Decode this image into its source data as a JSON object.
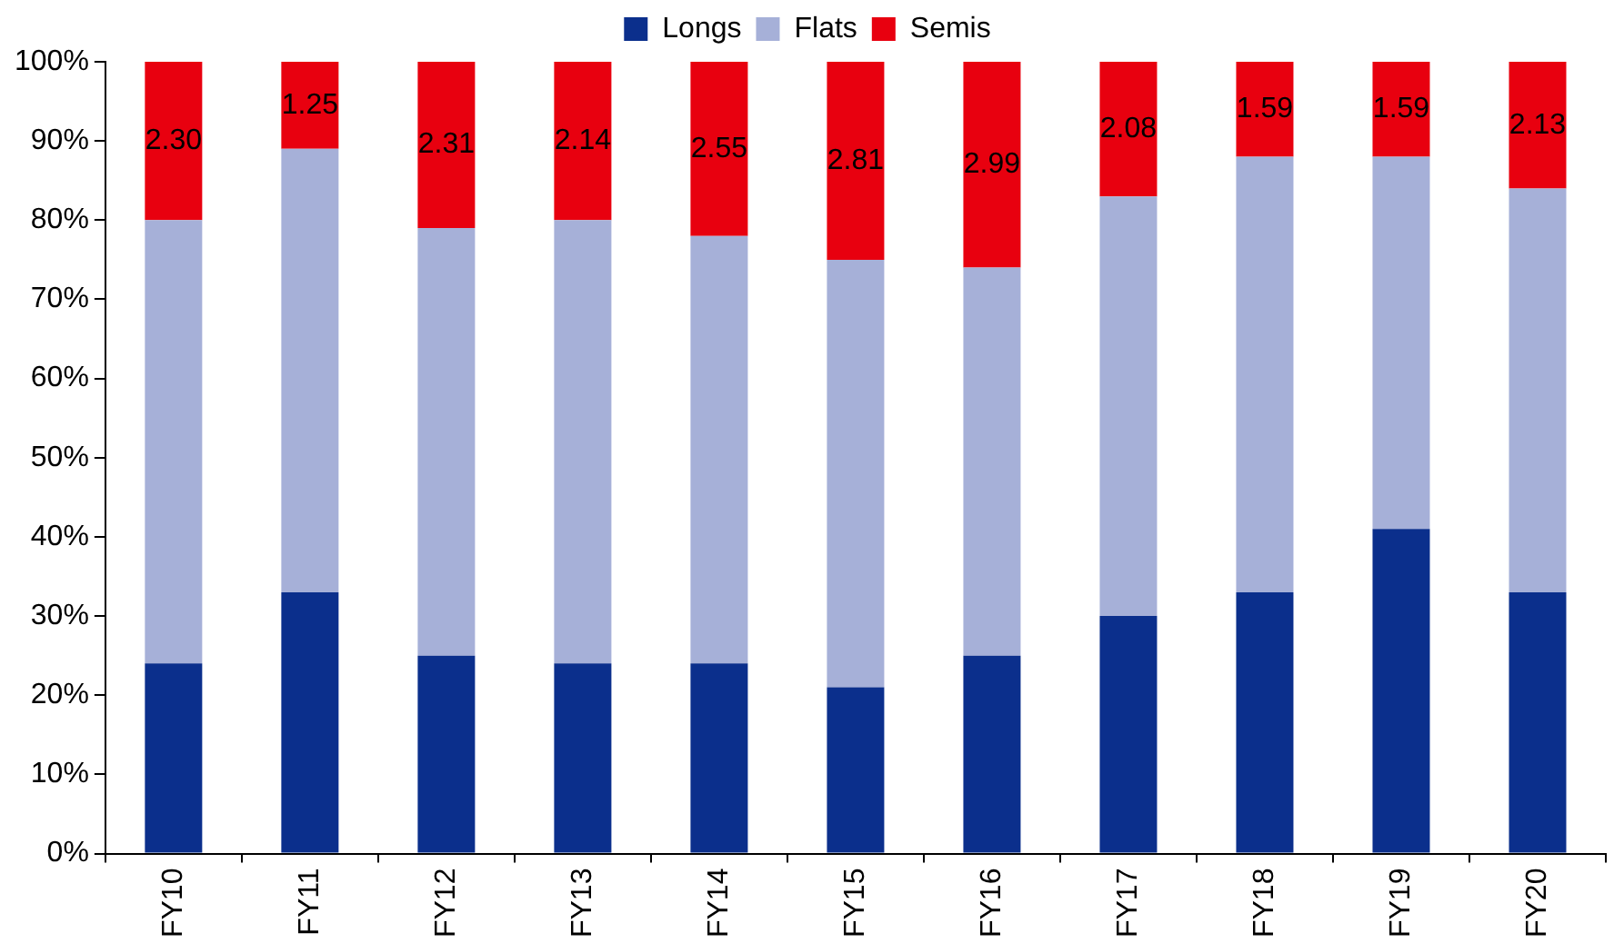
{
  "chart_data": {
    "type": "bar",
    "stacked": true,
    "categories": [
      "FY10",
      "FY11",
      "FY12",
      "FY13",
      "FY14",
      "FY15",
      "FY16",
      "FY17",
      "FY18",
      "FY19",
      "FY20"
    ],
    "series": [
      {
        "name": "Longs",
        "color": "#0b2f8c",
        "values": [
          24,
          33,
          25,
          24,
          24,
          21,
          25,
          30,
          33,
          41,
          33
        ]
      },
      {
        "name": "Flats",
        "color": "#a6b0d8",
        "values": [
          56,
          56,
          54,
          56,
          54,
          54,
          49,
          53,
          55,
          47,
          51
        ]
      },
      {
        "name": "Semis",
        "color": "#e8000f",
        "values": [
          20,
          11,
          21,
          20,
          22,
          25,
          26,
          17,
          12,
          12,
          16
        ]
      }
    ],
    "annotations": [
      "2.30",
      "1.25",
      "2.31",
      "2.14",
      "2.55",
      "2.81",
      "2.99",
      "2.08",
      "1.59",
      "1.59",
      "2.13"
    ],
    "ylim": [
      0,
      100
    ],
    "yticks": [
      {
        "value": 0,
        "label": "0%"
      },
      {
        "value": 10,
        "label": "10%"
      },
      {
        "value": 20,
        "label": "20%"
      },
      {
        "value": 30,
        "label": "30%"
      },
      {
        "value": 40,
        "label": "40%"
      },
      {
        "value": 50,
        "label": "50%"
      },
      {
        "value": 60,
        "label": "60%"
      },
      {
        "value": 70,
        "label": "70%"
      },
      {
        "value": 80,
        "label": "80%"
      },
      {
        "value": 90,
        "label": "90%"
      },
      {
        "value": 100,
        "label": "100%"
      }
    ],
    "grid": false,
    "legend": "top"
  }
}
